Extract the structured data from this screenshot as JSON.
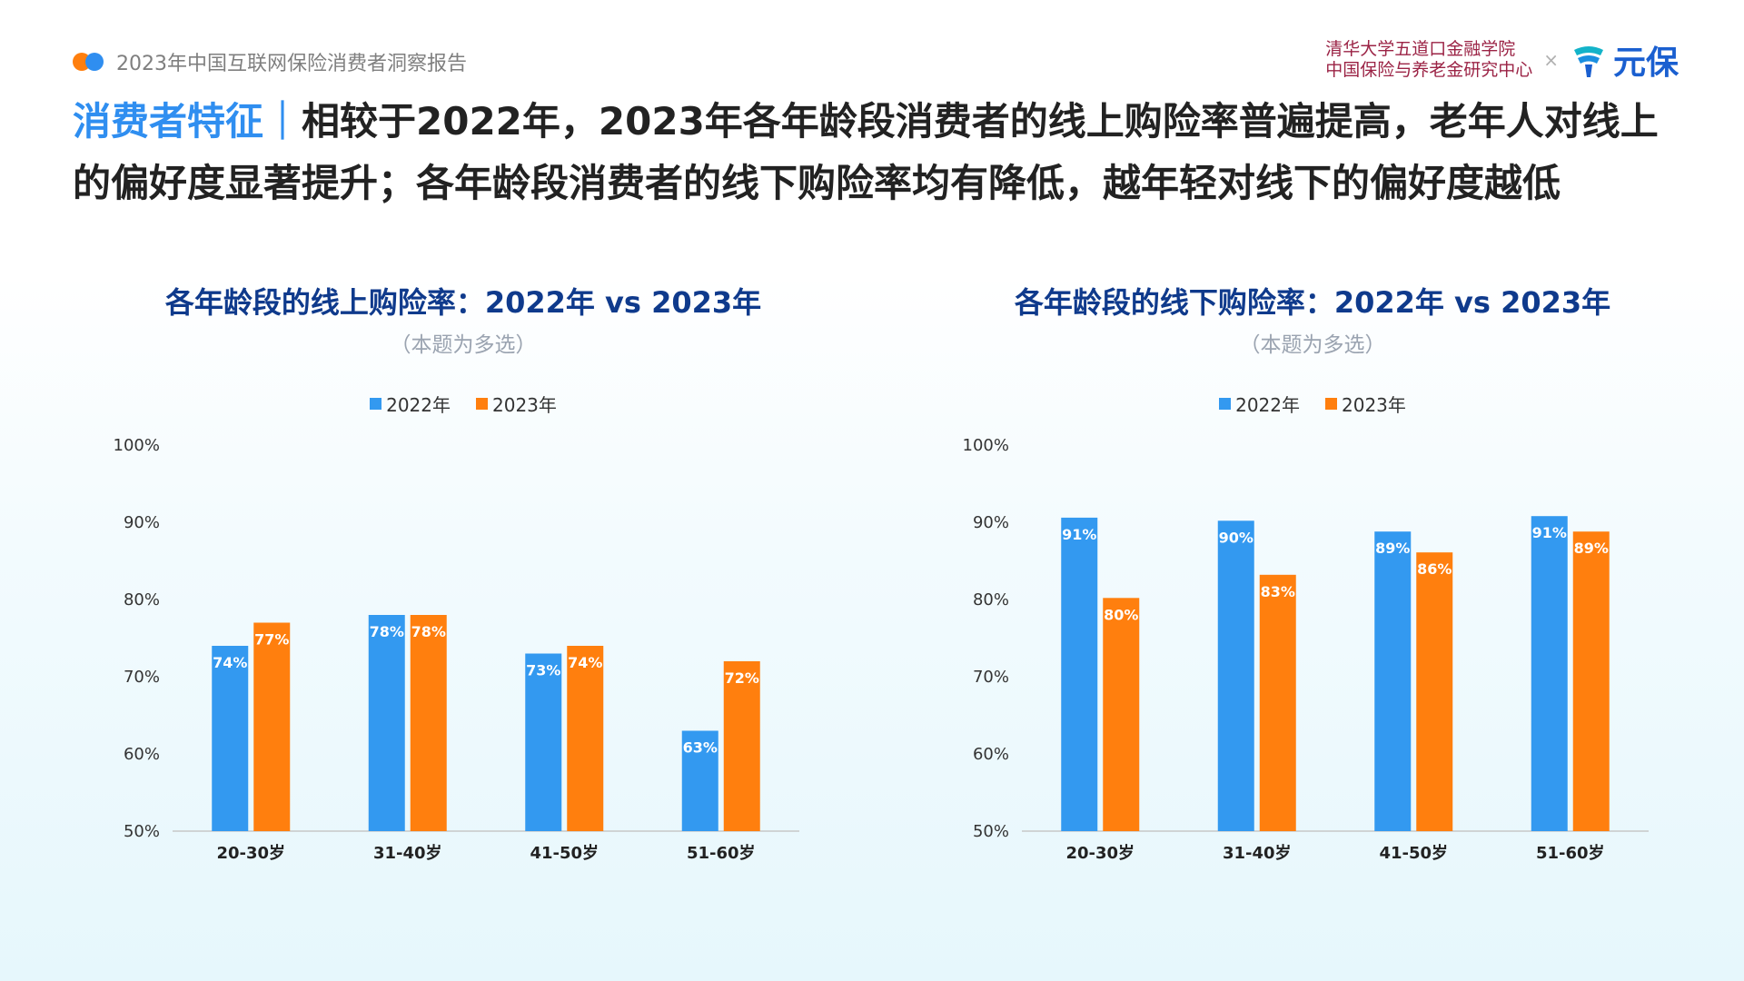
{
  "header": {
    "report_title": "2023年中国互联网保险消费者洞察报告",
    "partner_line1": "清华大学五道口金融学院",
    "partner_line2": "中国保险与养老金研究中心",
    "cross": "×",
    "brand": "元保"
  },
  "headline": {
    "key": "消费者特征｜",
    "text": "相较于2022年，2023年各年龄段消费者的线上购险率普遍提高，老年人对线上的偏好度显著提升；各年龄段消费者的线下购险率均有降低，越年轻对线下的偏好度越低"
  },
  "colors": {
    "s2022": "#3399f0",
    "s2023": "#ff7f0e"
  },
  "chart_data": [
    {
      "type": "bar",
      "title": "各年龄段的线上购险率：2022年 vs 2023年",
      "subtitle": "（本题为多选）",
      "categories": [
        "20-30岁",
        "31-40岁",
        "41-50岁",
        "51-60岁"
      ],
      "series": [
        {
          "name": "2022年",
          "values": [
            74,
            78,
            73,
            63
          ],
          "labels": [
            "74%",
            "78%",
            "73%",
            "63%"
          ]
        },
        {
          "name": "2023年",
          "values": [
            77,
            78,
            74,
            72
          ],
          "labels": [
            "77%",
            "78%",
            "74%",
            "72%"
          ]
        }
      ],
      "ylim": [
        50,
        100
      ],
      "yticks": [
        "50%",
        "60%",
        "70%",
        "80%",
        "90%",
        "100%"
      ],
      "legend": "top",
      "grid": false
    },
    {
      "type": "bar",
      "title": "各年龄段的线下购险率：2022年 vs 2023年",
      "subtitle": "（本题为多选）",
      "categories": [
        "20-30岁",
        "31-40岁",
        "41-50岁",
        "51-60岁"
      ],
      "series": [
        {
          "name": "2022年",
          "values": [
            90.6,
            90.2,
            88.8,
            90.8
          ],
          "labels": [
            "91%",
            "90%",
            "89%",
            "91%"
          ]
        },
        {
          "name": "2023年",
          "values": [
            80.2,
            83.2,
            86.1,
            88.8
          ],
          "labels": [
            "80%",
            "83%",
            "86%",
            "89%"
          ]
        }
      ],
      "ylim": [
        50,
        100
      ],
      "yticks": [
        "50%",
        "60%",
        "70%",
        "80%",
        "90%",
        "100%"
      ],
      "legend": "top",
      "grid": false
    }
  ]
}
